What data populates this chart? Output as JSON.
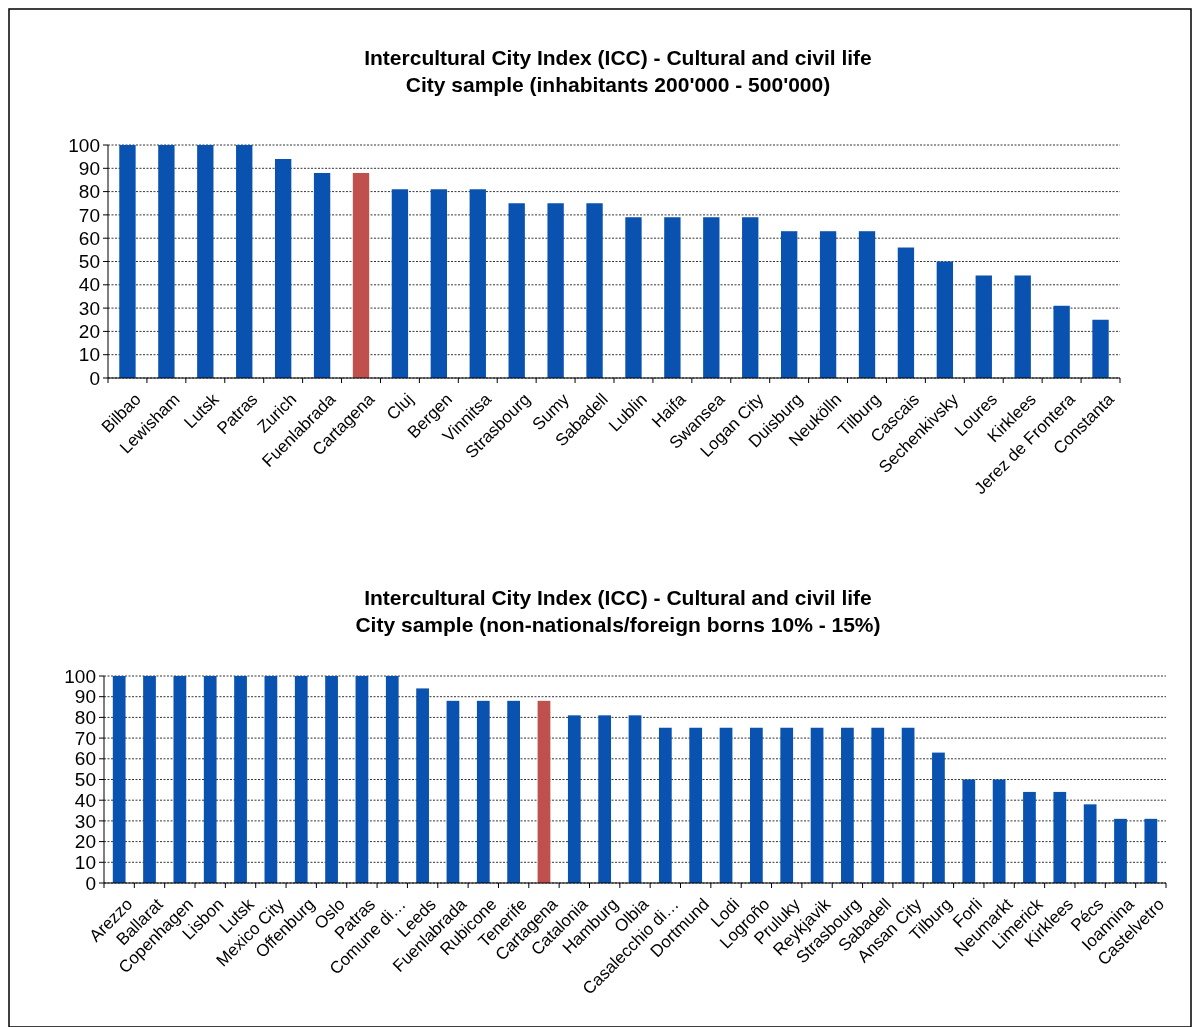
{
  "chart_data": [
    {
      "type": "bar",
      "title": "Intercultural City Index (ICC) - Cultural and civil life\nCity sample (inhabitants 200'000 - 500'000)",
      "categories": [
        "Bilbao",
        "Lewisham",
        "Lutsk",
        "Patras",
        "Zurich",
        "Fuenlabrada",
        "Cartagena",
        "Cluj",
        "Bergen",
        "Vinnitsa",
        "Strasbourg",
        "Sumy",
        "Sabadell",
        "Lublin",
        "Haifa",
        "Swansea",
        "Logan City",
        "Duisburg",
        "Neukölln",
        "Tilburg",
        "Cascais",
        "Sechenkivsky",
        "Loures",
        "Kirklees",
        "Jerez de Frontera",
        "Constanta"
      ],
      "values": [
        100,
        100,
        100,
        100,
        94,
        88,
        88,
        81,
        81,
        81,
        75,
        75,
        75,
        69,
        69,
        69,
        69,
        63,
        63,
        63,
        56,
        50,
        44,
        44,
        31,
        25
      ],
      "colors": [
        "#0a52b0",
        "#0a52b0",
        "#0a52b0",
        "#0a52b0",
        "#0a52b0",
        "#0a52b0",
        "#c0504d",
        "#0a52b0",
        "#0a52b0",
        "#0a52b0",
        "#0a52b0",
        "#0a52b0",
        "#0a52b0",
        "#0a52b0",
        "#0a52b0",
        "#0a52b0",
        "#0a52b0",
        "#0a52b0",
        "#0a52b0",
        "#0a52b0",
        "#0a52b0",
        "#0a52b0",
        "#0a52b0",
        "#0a52b0",
        "#0a52b0",
        "#0a52b0"
      ],
      "ylim": [
        0,
        100
      ],
      "yticks": [
        0,
        10,
        20,
        30,
        40,
        50,
        60,
        70,
        80,
        90,
        100
      ],
      "grid": "y"
    },
    {
      "type": "bar",
      "title": "Intercultural City Index (ICC) - Cultural and civil life\nCity sample (non-nationals/foreign borns 10% - 15%)",
      "categories": [
        "Arezzo",
        "Ballarat",
        "Copenhagen",
        "Lisbon",
        "Lutsk",
        "Mexico City",
        "Offenburg",
        "Oslo",
        "Patras",
        "Comune di…",
        "Leeds",
        "Fuenlabrada",
        "Rubicone",
        "Tenerife",
        "Cartagena",
        "Catalonia",
        "Hamburg",
        "Olbia",
        "Casalecchio di…",
        "Dortmund",
        "Lodi",
        "Logroño",
        "Pruluky",
        "Reykjavik",
        "Strasbourg",
        "Sabadell",
        "Ansan City",
        "Tilburg",
        "Forli",
        "Neumarkt",
        "Limerick",
        "Kirklees",
        "Pécs",
        "Ioannina",
        "Castelvetro"
      ],
      "values": [
        100,
        100,
        100,
        100,
        100,
        100,
        100,
        100,
        100,
        100,
        94,
        88,
        88,
        88,
        88,
        81,
        81,
        81,
        75,
        75,
        75,
        75,
        75,
        75,
        75,
        75,
        75,
        63,
        50,
        50,
        44,
        44,
        38,
        31,
        31
      ],
      "colors": [
        "#0a52b0",
        "#0a52b0",
        "#0a52b0",
        "#0a52b0",
        "#0a52b0",
        "#0a52b0",
        "#0a52b0",
        "#0a52b0",
        "#0a52b0",
        "#0a52b0",
        "#0a52b0",
        "#0a52b0",
        "#0a52b0",
        "#0a52b0",
        "#c0504d",
        "#0a52b0",
        "#0a52b0",
        "#0a52b0",
        "#0a52b0",
        "#0a52b0",
        "#0a52b0",
        "#0a52b0",
        "#0a52b0",
        "#0a52b0",
        "#0a52b0",
        "#0a52b0",
        "#0a52b0",
        "#0a52b0",
        "#0a52b0",
        "#0a52b0",
        "#0a52b0",
        "#0a52b0",
        "#0a52b0",
        "#0a52b0",
        "#0a52b0"
      ],
      "ylim": [
        0,
        100
      ],
      "yticks": [
        0,
        10,
        20,
        30,
        40,
        50,
        60,
        70,
        80,
        90,
        100
      ],
      "grid": "y"
    }
  ]
}
